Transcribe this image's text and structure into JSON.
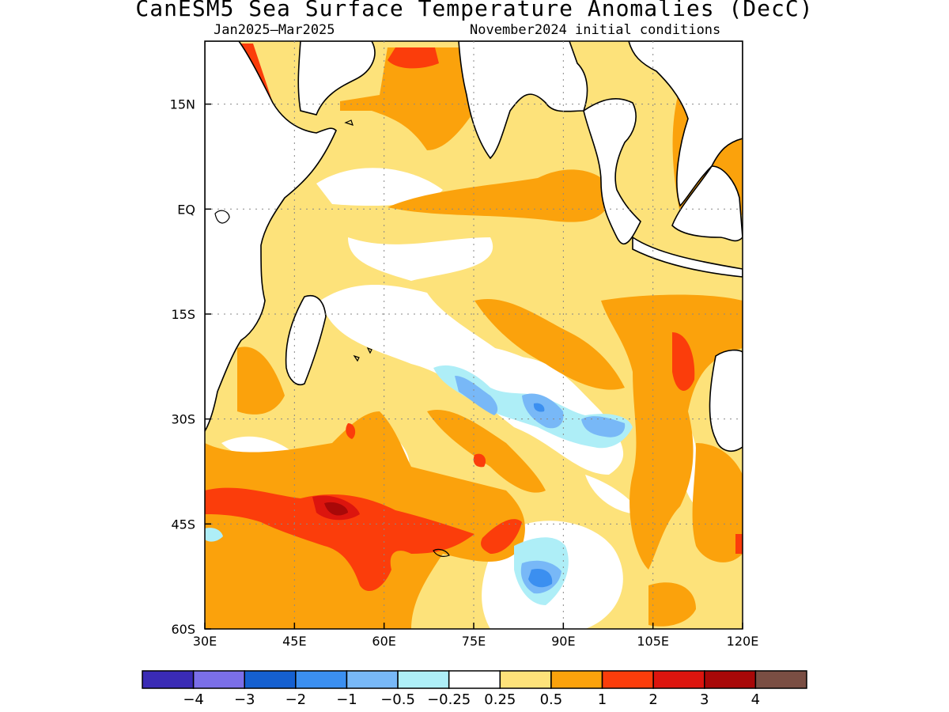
{
  "header": {
    "title": "CanESM5 Sea Surface Temperature Anomalies (DecC)",
    "period": "Jan2025–Mar2025",
    "init": "November2024 initial conditions"
  },
  "map": {
    "region": "Indian Ocean",
    "lon_range": [
      30,
      120
    ],
    "lat_range": [
      -60,
      24
    ],
    "x_ticks": [
      {
        "lon": 30,
        "label": "30E"
      },
      {
        "lon": 45,
        "label": "45E"
      },
      {
        "lon": 60,
        "label": "60E"
      },
      {
        "lon": 75,
        "label": "75E"
      },
      {
        "lon": 90,
        "label": "90E"
      },
      {
        "lon": 105,
        "label": "105E"
      },
      {
        "lon": 120,
        "label": "120E"
      }
    ],
    "y_ticks": [
      {
        "lat": 15,
        "label": "15N"
      },
      {
        "lat": 0,
        "label": "EQ"
      },
      {
        "lat": -15,
        "label": "15S"
      },
      {
        "lat": -30,
        "label": "30S"
      },
      {
        "lat": -45,
        "label": "45S"
      },
      {
        "lat": -60,
        "label": "60S"
      }
    ],
    "grid": true
  },
  "colorbar": {
    "colors": [
      "#3a2bb5",
      "#7b6fe8",
      "#1560d0",
      "#3b8ff0",
      "#78b8f7",
      "#aeeef7",
      "#ffffff",
      "#fde27a",
      "#fba20c",
      "#fb3d0b",
      "#dc150e",
      "#a80808",
      "#7a4e43"
    ],
    "labels": [
      "−4",
      "−3",
      "−2",
      "−1",
      "−0.5",
      "−0.25",
      "0.25",
      "0.5",
      "1",
      "2",
      "3",
      "4"
    ]
  },
  "legend_colors": {
    "light_yellow": "#fde27a",
    "orange": "#fba20c",
    "red_orange": "#fb3d0b",
    "red": "#dc150e",
    "dark_red": "#a80808",
    "light_cyan": "#aeeef7",
    "light_blue": "#78b8f7",
    "blue": "#3b8ff0",
    "white": "#ffffff"
  }
}
